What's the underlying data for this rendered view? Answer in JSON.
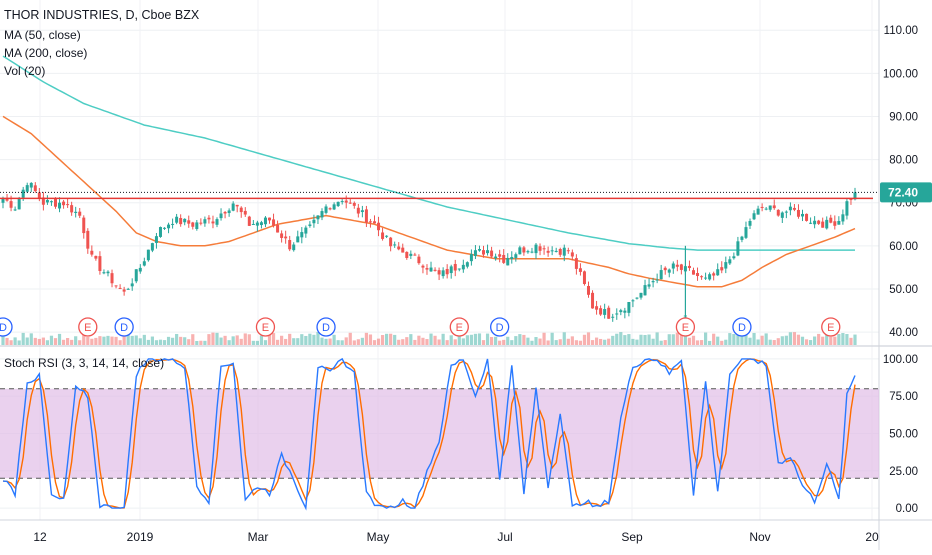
{
  "header": {
    "symbol_title": "THOR INDUSTRIES, D, Cboe BZX",
    "ma50_label": "MA (50, close)",
    "ma200_label": "MA (200, close)",
    "vol_label": "Vol (20)",
    "rsi_label": "Stoch RSI (3, 3, 14, 14, close)"
  },
  "colors": {
    "ma50": "#f57c3a",
    "ma200": "#4ecdc4",
    "resistance": "#e53935",
    "up_candle": "#26a69a",
    "down_candle": "#ef5350",
    "rsi_k": "#2979ff",
    "rsi_d": "#ff6d00",
    "rsi_band": "#e1bee7",
    "price_badge": "#26a69a",
    "event_earnings": "#ef5350",
    "event_dividend": "#2962ff"
  },
  "chart_data": [
    {
      "type": "candlestick",
      "name": "price",
      "ylim": [
        37,
        117
      ],
      "y_ticks": [
        "110.00",
        "100.00",
        "90.00",
        "80.00",
        "70.00",
        "60.00",
        "50.00",
        "40.00"
      ],
      "y_tick_values": [
        110,
        100,
        90,
        80,
        70,
        60,
        50,
        40
      ],
      "last_price_label": "72.40",
      "last_price": 72.4,
      "resistance_level": 71.0,
      "x_labels": [
        "12",
        "2019",
        "Mar",
        "May",
        "Jul",
        "Sep",
        "Nov",
        "20"
      ],
      "price_keypoints": [
        [
          0,
          71
        ],
        [
          3,
          69
        ],
        [
          6,
          75
        ],
        [
          10,
          70
        ],
        [
          15,
          70
        ],
        [
          19,
          67
        ],
        [
          22,
          57
        ],
        [
          27,
          52
        ],
        [
          30,
          49
        ],
        [
          34,
          55
        ],
        [
          38,
          63
        ],
        [
          42,
          66
        ],
        [
          47,
          65
        ],
        [
          52,
          66
        ],
        [
          57,
          70
        ],
        [
          61,
          65
        ],
        [
          66,
          66
        ],
        [
          71,
          60
        ],
        [
          76,
          64
        ],
        [
          80,
          69
        ],
        [
          84,
          71
        ],
        [
          88,
          68
        ],
        [
          92,
          65
        ],
        [
          96,
          60
        ],
        [
          100,
          58
        ],
        [
          104,
          56
        ],
        [
          108,
          53
        ],
        [
          112,
          55
        ],
        [
          116,
          58
        ],
        [
          120,
          59
        ],
        [
          124,
          57
        ],
        [
          128,
          59
        ],
        [
          132,
          60
        ],
        [
          136,
          59
        ],
        [
          140,
          59
        ],
        [
          143,
          53
        ],
        [
          146,
          46
        ],
        [
          150,
          44
        ],
        [
          154,
          46
        ],
        [
          158,
          49
        ],
        [
          162,
          53
        ],
        [
          166,
          55
        ],
        [
          170,
          54
        ],
        [
          174,
          52
        ],
        [
          178,
          54
        ],
        [
          182,
          60
        ],
        [
          185,
          66
        ],
        [
          188,
          69
        ],
        [
          192,
          68
        ],
        [
          196,
          68
        ],
        [
          200,
          66
        ],
        [
          204,
          65
        ],
        [
          207,
          66
        ],
        [
          209,
          70
        ],
        [
          211,
          72.4
        ]
      ],
      "ma50_keypoints": [
        [
          0,
          90
        ],
        [
          7,
          86
        ],
        [
          14,
          80
        ],
        [
          21,
          74
        ],
        [
          28,
          68
        ],
        [
          33,
          63
        ],
        [
          38,
          61
        ],
        [
          44,
          60
        ],
        [
          50,
          60
        ],
        [
          56,
          61
        ],
        [
          62,
          63
        ],
        [
          68,
          65
        ],
        [
          74,
          66
        ],
        [
          80,
          67
        ],
        [
          86,
          66
        ],
        [
          92,
          65
        ],
        [
          98,
          63
        ],
        [
          104,
          61
        ],
        [
          110,
          59
        ],
        [
          116,
          58
        ],
        [
          122,
          57
        ],
        [
          128,
          57
        ],
        [
          134,
          57
        ],
        [
          140,
          57
        ],
        [
          145,
          56
        ],
        [
          150,
          55
        ],
        [
          155,
          53.5
        ],
        [
          160,
          52.5
        ],
        [
          166,
          51.5
        ],
        [
          172,
          50.5
        ],
        [
          178,
          50.5
        ],
        [
          183,
          52
        ],
        [
          188,
          55
        ],
        [
          194,
          58
        ],
        [
          200,
          60
        ],
        [
          206,
          62
        ],
        [
          211,
          64
        ]
      ],
      "ma200_keypoints": [
        [
          0,
          104
        ],
        [
          10,
          98
        ],
        [
          20,
          93
        ],
        [
          35,
          88
        ],
        [
          50,
          85
        ],
        [
          65,
          81
        ],
        [
          80,
          77
        ],
        [
          95,
          73
        ],
        [
          110,
          69
        ],
        [
          125,
          66
        ],
        [
          140,
          63
        ],
        [
          155,
          60.5
        ],
        [
          165,
          59.5
        ],
        [
          172,
          59
        ],
        [
          180,
          59
        ],
        [
          190,
          59
        ],
        [
          200,
          59
        ],
        [
          211,
          59
        ]
      ],
      "earnings_events": [
        21,
        65,
        113,
        169,
        205
      ],
      "dividend_events": [
        0,
        30,
        80,
        123,
        183
      ],
      "event_labels": {
        "earnings": "E",
        "dividend": "D"
      }
    },
    {
      "type": "line",
      "name": "stoch_rsi",
      "ylim": [
        -8,
        108
      ],
      "y_ticks": [
        "100.00",
        "75.00",
        "50.00",
        "25.00",
        "0.00"
      ],
      "y_tick_values": [
        100,
        75,
        50,
        25,
        0
      ],
      "band_upper": 80,
      "band_lower": 20,
      "k_keypoints": [
        [
          0,
          20
        ],
        [
          3,
          10
        ],
        [
          6,
          85
        ],
        [
          9,
          88
        ],
        [
          12,
          8
        ],
        [
          15,
          5
        ],
        [
          18,
          80
        ],
        [
          21,
          75
        ],
        [
          24,
          2
        ],
        [
          27,
          0
        ],
        [
          30,
          0
        ],
        [
          33,
          90
        ],
        [
          36,
          100
        ],
        [
          42,
          100
        ],
        [
          45,
          95
        ],
        [
          48,
          15
        ],
        [
          51,
          5
        ],
        [
          54,
          95
        ],
        [
          57,
          98
        ],
        [
          60,
          5
        ],
        [
          63,
          15
        ],
        [
          66,
          10
        ],
        [
          69,
          35
        ],
        [
          72,
          20
        ],
        [
          75,
          0
        ],
        [
          78,
          95
        ],
        [
          81,
          90
        ],
        [
          84,
          100
        ],
        [
          87,
          90
        ],
        [
          90,
          10
        ],
        [
          93,
          0
        ],
        [
          96,
          0
        ],
        [
          99,
          5
        ],
        [
          102,
          0
        ],
        [
          105,
          25
        ],
        [
          108,
          45
        ],
        [
          111,
          95
        ],
        [
          114,
          100
        ],
        [
          117,
          75
        ],
        [
          120,
          100
        ],
        [
          123,
          20
        ],
        [
          126,
          95
        ],
        [
          129,
          10
        ],
        [
          132,
          80
        ],
        [
          135,
          15
        ],
        [
          138,
          65
        ],
        [
          141,
          0
        ],
        [
          144,
          5
        ],
        [
          147,
          0
        ],
        [
          150,
          5
        ],
        [
          153,
          60
        ],
        [
          156,
          95
        ],
        [
          159,
          100
        ],
        [
          162,
          100
        ],
        [
          165,
          90
        ],
        [
          168,
          100
        ],
        [
          171,
          10
        ],
        [
          174,
          85
        ],
        [
          177,
          10
        ],
        [
          180,
          90
        ],
        [
          183,
          100
        ],
        [
          186,
          100
        ],
        [
          189,
          95
        ],
        [
          192,
          30
        ],
        [
          195,
          35
        ],
        [
          198,
          15
        ],
        [
          201,
          5
        ],
        [
          204,
          30
        ],
        [
          207,
          5
        ],
        [
          209,
          75
        ],
        [
          211,
          89
        ]
      ]
    },
    {
      "type": "bar",
      "name": "volume",
      "description_level": "relative"
    }
  ]
}
